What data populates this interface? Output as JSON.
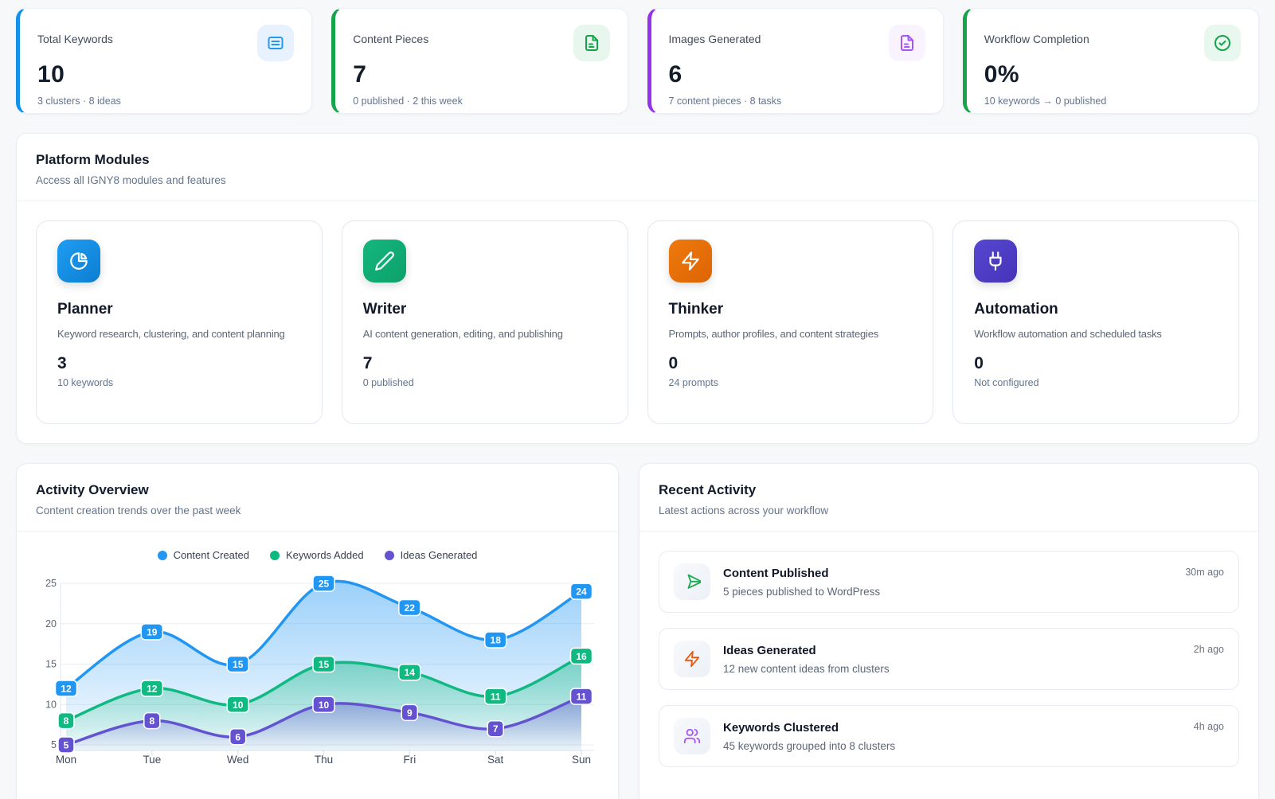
{
  "stats": [
    {
      "label": "Total Keywords",
      "value": "10",
      "sub": "3 clusters · 8 ideas",
      "accent": "#1291ea",
      "icon": "document-lines-icon",
      "icon_bg": "#e8f2fe",
      "icon_color": "#2499f0"
    },
    {
      "label": "Content Pieces",
      "value": "7",
      "sub": "0 published · 2 this week",
      "accent": "#17a34a",
      "icon": "file-text-icon",
      "icon_bg": "#e7f7ee",
      "icon_color": "#17a34a"
    },
    {
      "label": "Images Generated",
      "value": "6",
      "sub": "7 content pieces · 8 tasks",
      "accent": "#9333ea",
      "icon": "file-text-icon",
      "icon_bg": "#f8f3fe",
      "icon_color": "#a855f7"
    },
    {
      "label": "Workflow Completion",
      "value": "0%",
      "sub": "10 keywords → 0 published",
      "accent": "#17a34a",
      "icon": "check-circle-icon",
      "icon_bg": "#e9f8ef",
      "icon_color": "#17a34a"
    }
  ],
  "modules_panel": {
    "title": "Platform Modules",
    "subtitle": "Access all IGNY8 modules and features",
    "modules": [
      {
        "name": "Planner",
        "desc": "Keyword research, clustering, and content planning",
        "stat": "3",
        "stat_label": "10 keywords",
        "icon": "pie-chart-icon",
        "grad_from": "#1e9df2",
        "grad_to": "#0d7ed2"
      },
      {
        "name": "Writer",
        "desc": "AI content generation, editing, and publishing",
        "stat": "7",
        "stat_label": "0 published",
        "icon": "pencil-icon",
        "grad_from": "#14b77e",
        "grad_to": "#0da06a"
      },
      {
        "name": "Thinker",
        "desc": "Prompts, author profiles, and content strategies",
        "stat": "0",
        "stat_label": "24 prompts",
        "icon": "zap-icon",
        "grad_from": "#ee7a0d",
        "grad_to": "#dd6404"
      },
      {
        "name": "Automation",
        "desc": "Workflow automation and scheduled tasks",
        "stat": "0",
        "stat_label": "Not configured",
        "icon": "plug-icon",
        "grad_from": "#5747d1",
        "grad_to": "#4534b8"
      }
    ]
  },
  "activity_panel": {
    "title": "Activity Overview",
    "subtitle": "Content creation trends over the past week"
  },
  "chart_data": {
    "type": "area",
    "title": "Activity Overview",
    "x": [
      "Mon",
      "Tue",
      "Wed",
      "Thu",
      "Fri",
      "Sat",
      "Sun"
    ],
    "series": [
      {
        "name": "Content Created",
        "color": "#2196f3",
        "values": [
          12,
          19,
          15,
          25,
          22,
          18,
          24
        ]
      },
      {
        "name": "Keywords Added",
        "color": "#10b981",
        "values": [
          8,
          12,
          10,
          15,
          14,
          11,
          16
        ]
      },
      {
        "name": "Ideas Generated",
        "color": "#6453d1",
        "values": [
          5,
          8,
          6,
          10,
          9,
          7,
          11
        ]
      }
    ],
    "ylim": [
      5,
      25
    ],
    "yticks": [
      5,
      10,
      15,
      20,
      25
    ],
    "grid": true,
    "legend_position": "top",
    "point_labels": true
  },
  "recent_panel": {
    "title": "Recent Activity",
    "subtitle": "Latest actions across your workflow",
    "items": [
      {
        "title": "Content Published",
        "desc": "5 pieces published to WordPress",
        "time": "30m ago",
        "icon": "send-icon",
        "icon_color": "#1cab53"
      },
      {
        "title": "Ideas Generated",
        "desc": "12 new content ideas from clusters",
        "time": "2h ago",
        "icon": "zap-icon",
        "icon_color": "#ea580c"
      },
      {
        "title": "Keywords Clustered",
        "desc": "45 keywords grouped into 8 clusters",
        "time": "4h ago",
        "icon": "users-icon",
        "icon_color": "#a855f7"
      }
    ]
  }
}
